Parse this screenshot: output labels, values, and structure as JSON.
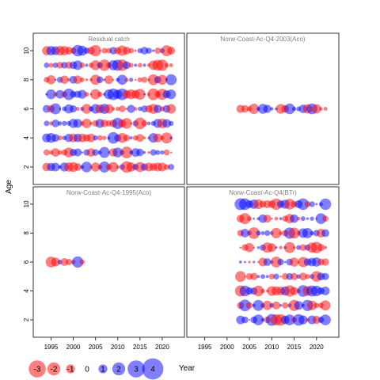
{
  "chart_data": {
    "type": "scatter",
    "subtype": "bubble-residual-panels",
    "xlabel": "Year",
    "ylabel": "Age",
    "xlim": [
      1991,
      2025
    ],
    "ylim": [
      0.8,
      11.2
    ],
    "xticks": [
      1995,
      2000,
      2005,
      2010,
      2015,
      2020
    ],
    "yticks": [
      2,
      4,
      6,
      8,
      10
    ],
    "colors": {
      "positive": "#0000ff",
      "negative": "#ff0000",
      "fill_alpha": 0.5
    },
    "panels": [
      {
        "title": "Residual catch",
        "years": [
          1994,
          2022
        ],
        "ages": [
          2,
          10
        ]
      },
      {
        "title": "Norw-Coast-Ac-Q4-2003(Aco)",
        "years": [
          2003,
          2022
        ],
        "ages": [
          6,
          6
        ]
      },
      {
        "title": "Norw-Coast-Ac-Q4-1995(Aco)",
        "years": [
          1995,
          2002
        ],
        "ages": [
          6,
          6
        ]
      },
      {
        "title": "Norw-Coast-Ac-Q4(BTr)",
        "years": [
          2003,
          2022
        ],
        "ages": [
          2,
          10
        ]
      }
    ],
    "legend": {
      "position": "bottom",
      "values": [
        -3,
        -2,
        -1,
        0,
        1,
        2,
        3,
        4
      ],
      "labels": [
        "-3",
        "-2",
        "-1",
        "0",
        "1",
        "2",
        "3",
        "4"
      ]
    }
  }
}
